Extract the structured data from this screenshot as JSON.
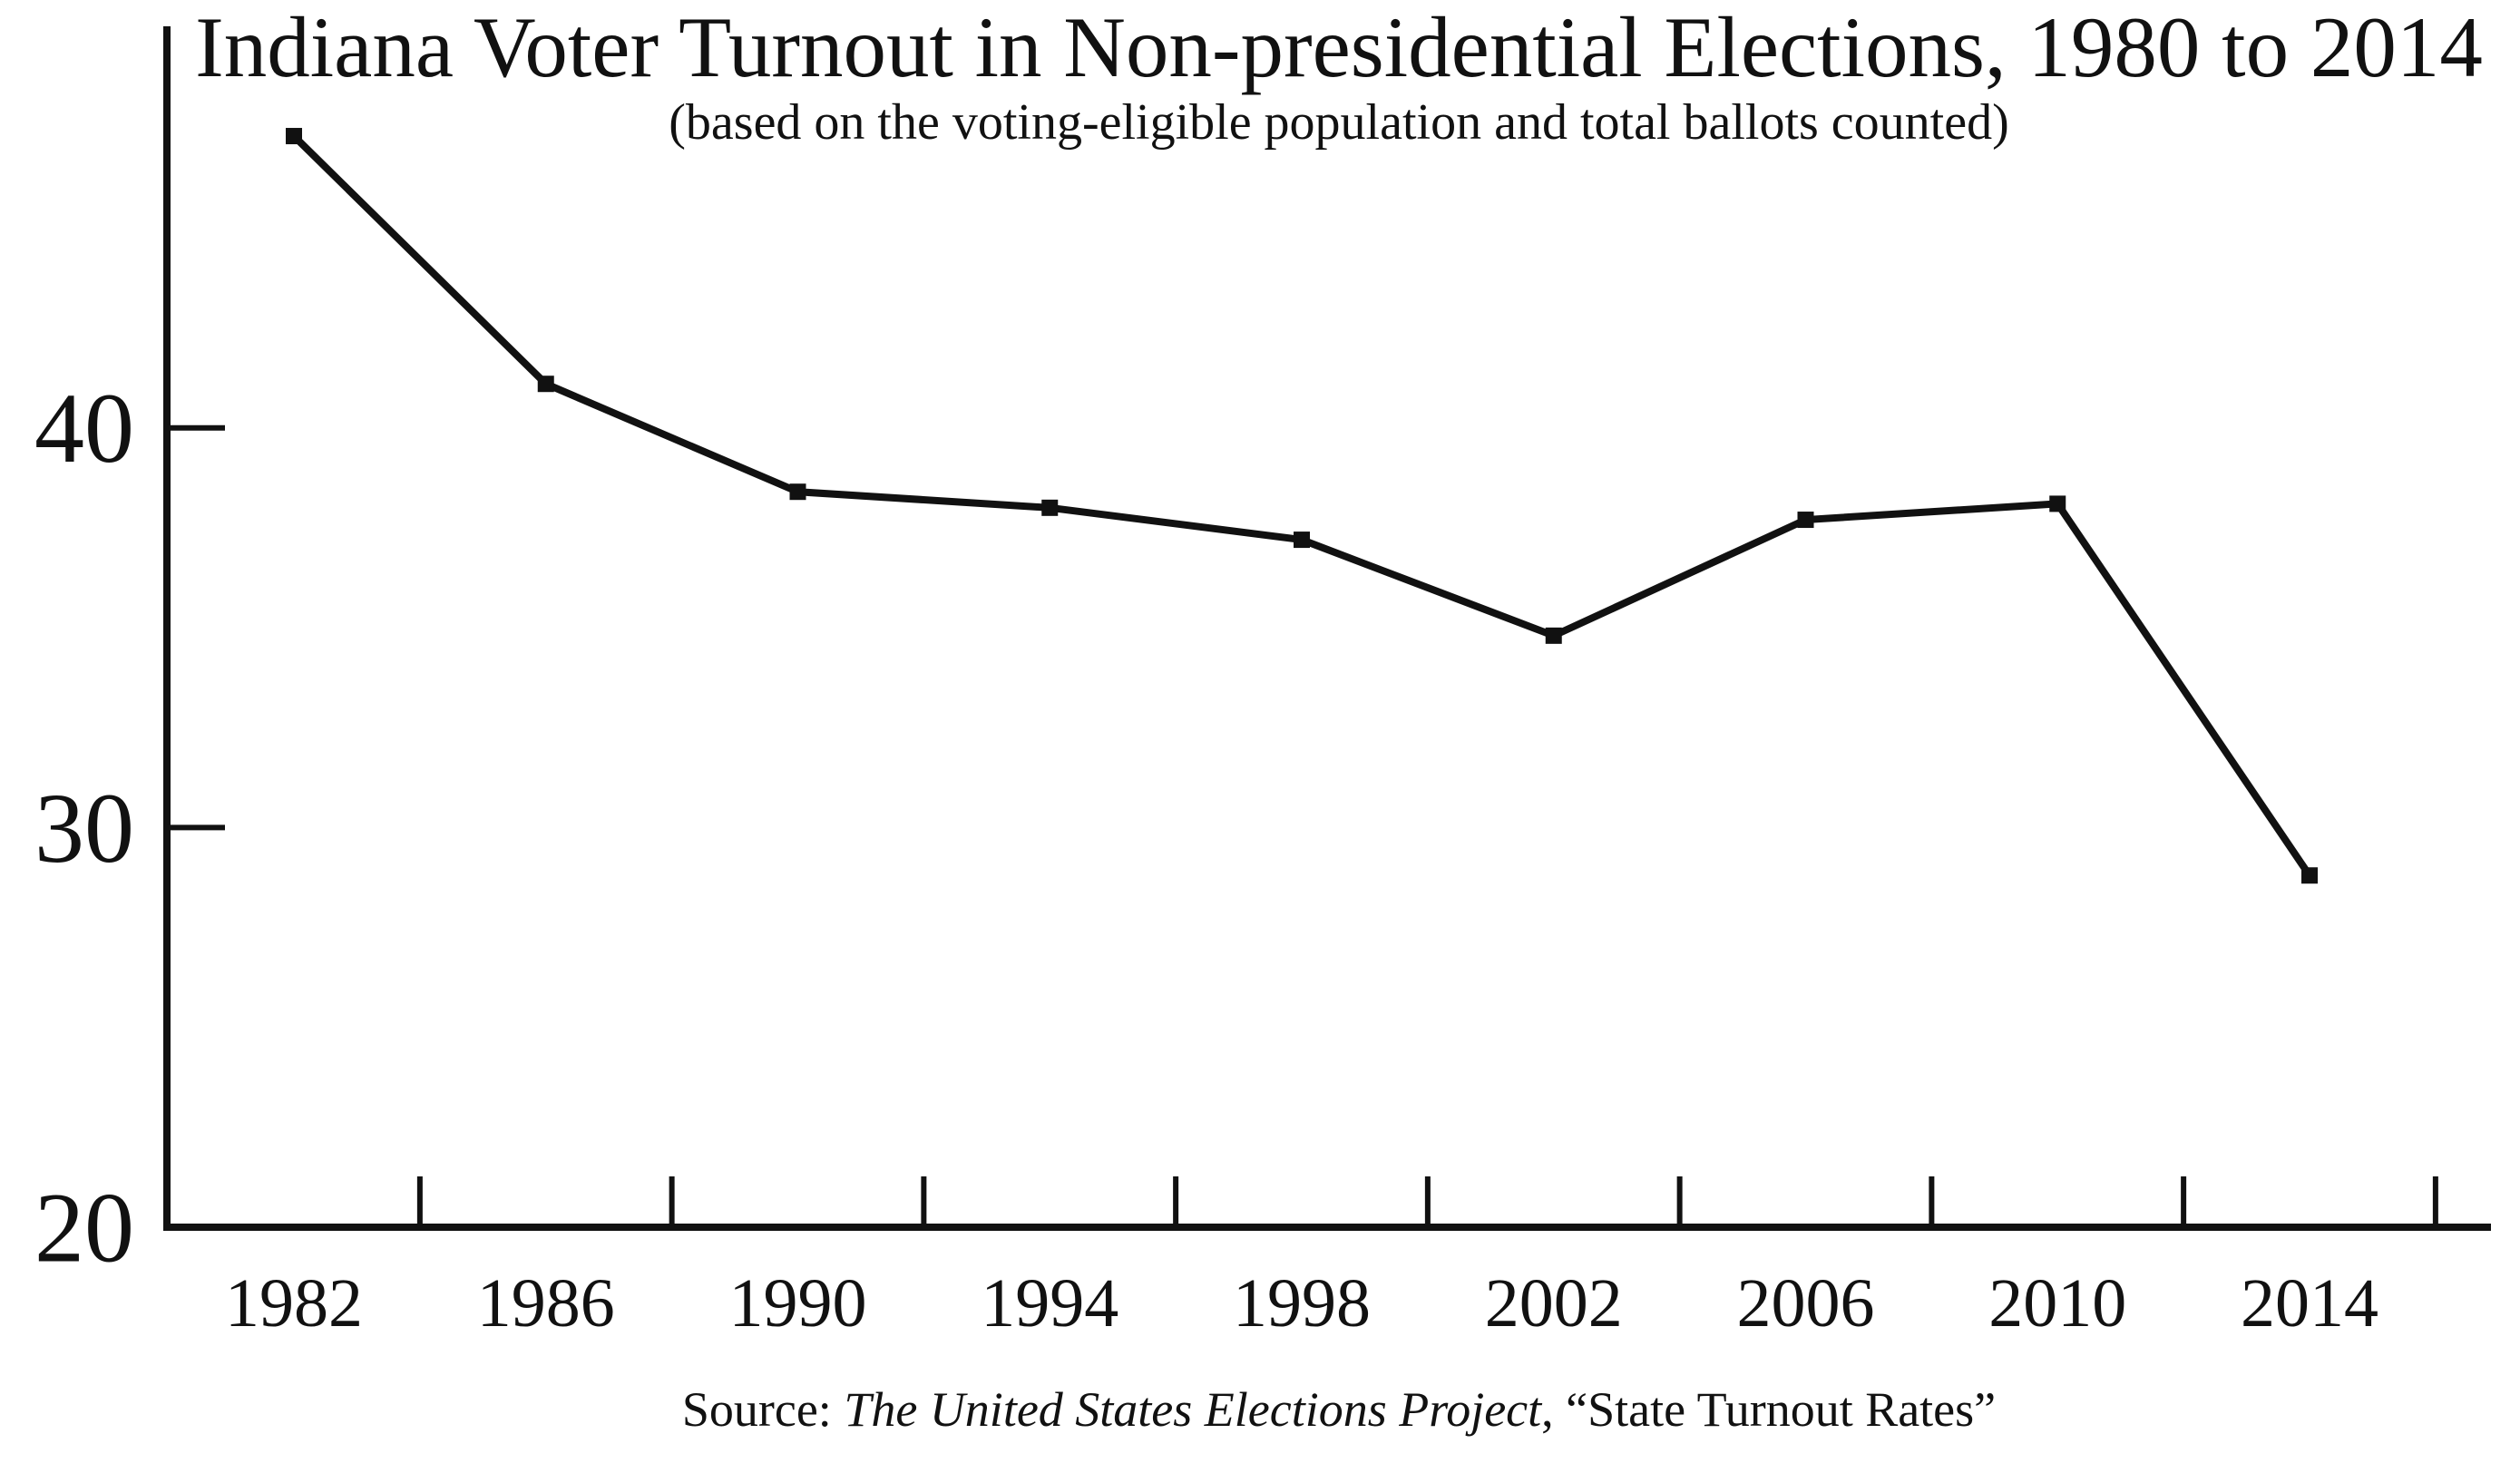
{
  "chart_data": {
    "type": "line",
    "title": "Indiana Voter Turnout in Non-presidential Elections, 1980 to 2014",
    "subtitle": "(based on the voting-eligible population and total ballots counted)",
    "source_prefix": "Source: ",
    "source_italic": "The United States Elections Project",
    "source_suffix": ", “State Turnout Rates”",
    "categories": [
      "1982",
      "1986",
      "1990",
      "1994",
      "1998",
      "2002",
      "2006",
      "2010",
      "2014"
    ],
    "values": [
      47.3,
      41.1,
      38.4,
      38.0,
      37.2,
      34.8,
      37.7,
      38.1,
      28.8
    ],
    "xlabel": "",
    "ylabel": "",
    "ylim": [
      20,
      50
    ],
    "yticks": [
      40,
      30,
      20
    ],
    "x_minor_ticks": "midpoints-between-years",
    "grid": false,
    "legend": "none",
    "marker": "square",
    "line_color": "#111111",
    "background": "#ffffff"
  }
}
